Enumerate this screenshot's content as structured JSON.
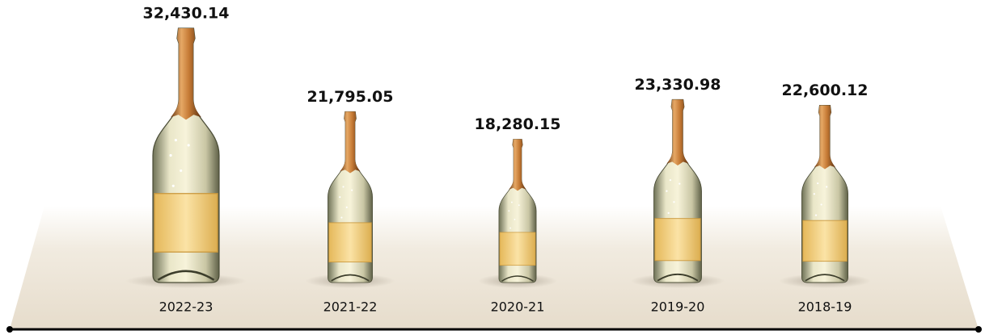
{
  "chart_data": {
    "type": "bar",
    "categories": [
      "2022-23",
      "2021-22",
      "2020-21",
      "2019-20",
      "2018-19"
    ],
    "values": [
      32430.14,
      21795.05,
      18280.15,
      23330.98,
      22600.12
    ],
    "value_labels": [
      "32,430.14",
      "21,795.05",
      "18,280.15",
      "23,330.98",
      "22,600.12"
    ]
  }
}
